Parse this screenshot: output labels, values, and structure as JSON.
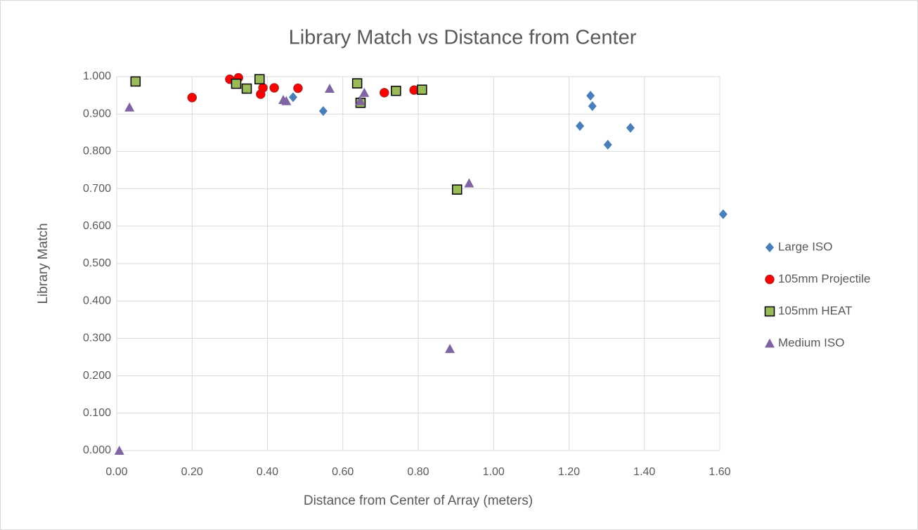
{
  "chart_data": {
    "type": "scatter",
    "title": "Library Match vs Distance from Center",
    "x_label": "Distance from Center of Array (meters)",
    "y_label": "Library Match",
    "xlim": [
      0,
      1.6
    ],
    "ylim": [
      0,
      1
    ],
    "xticks": [
      {
        "value": 0,
        "label": "0.00"
      },
      {
        "value": 0.2,
        "label": "0.20"
      },
      {
        "value": 0.4,
        "label": "0.40"
      },
      {
        "value": 0.6,
        "label": "0.60"
      },
      {
        "value": 0.8,
        "label": "0.80"
      },
      {
        "value": 1,
        "label": "1.00"
      },
      {
        "value": 1.2,
        "label": "1.20"
      },
      {
        "value": 1.4,
        "label": "1.40"
      },
      {
        "value": 1.6,
        "label": "1.60"
      }
    ],
    "yticks": [
      {
        "value": 0,
        "label": "0.000"
      },
      {
        "value": 0.1,
        "label": "0.100"
      },
      {
        "value": 0.2,
        "label": "0.200"
      },
      {
        "value": 0.3,
        "label": "0.300"
      },
      {
        "value": 0.4,
        "label": "0.400"
      },
      {
        "value": 0.5,
        "label": "0.500"
      },
      {
        "value": 0.6,
        "label": "0.600"
      },
      {
        "value": 0.7,
        "label": "0.700"
      },
      {
        "value": 0.8,
        "label": "0.800"
      },
      {
        "value": 0.9,
        "label": "0.900"
      },
      {
        "value": 1,
        "label": "1.000"
      }
    ],
    "grid": true,
    "legend": "right",
    "series": [
      {
        "name": "Large ISO",
        "color": "#4a7ebb",
        "marker": "diamond",
        "x": [
          0.468,
          0.548,
          1.229,
          1.257,
          1.262,
          1.303,
          1.363,
          1.609,
          0.645
        ],
        "y": [
          0.945,
          0.908,
          0.868,
          0.949,
          0.921,
          0.818,
          0.863,
          0.632,
          0.935
        ]
      },
      {
        "name": "105mm Projectile",
        "color": "#ff0000",
        "marker": "circle",
        "x": [
          0.2,
          0.3,
          0.323,
          0.382,
          0.388,
          0.418,
          0.481,
          0.71,
          0.789
        ],
        "y": [
          0.944,
          0.993,
          0.997,
          0.953,
          0.97,
          0.97,
          0.969,
          0.957,
          0.964
        ]
      },
      {
        "name": "105mm HEAT",
        "color": "#9bbb59",
        "marker": "square",
        "x": [
          0.05,
          0.317,
          0.345,
          0.379,
          0.638,
          0.647,
          0.741,
          0.81,
          0.903
        ],
        "y": [
          0.987,
          0.981,
          0.968,
          0.993,
          0.982,
          0.93,
          0.962,
          0.965,
          0.698
        ]
      },
      {
        "name": "Medium ISO",
        "color": "#8064a2",
        "marker": "triangle",
        "x": [
          0.034,
          0.007,
          0.442,
          0.45,
          0.565,
          0.646,
          0.657,
          0.884,
          0.935
        ],
        "y": [
          0.918,
          0.0,
          0.938,
          0.935,
          0.968,
          0.935,
          0.957,
          0.272,
          0.715
        ]
      }
    ]
  }
}
